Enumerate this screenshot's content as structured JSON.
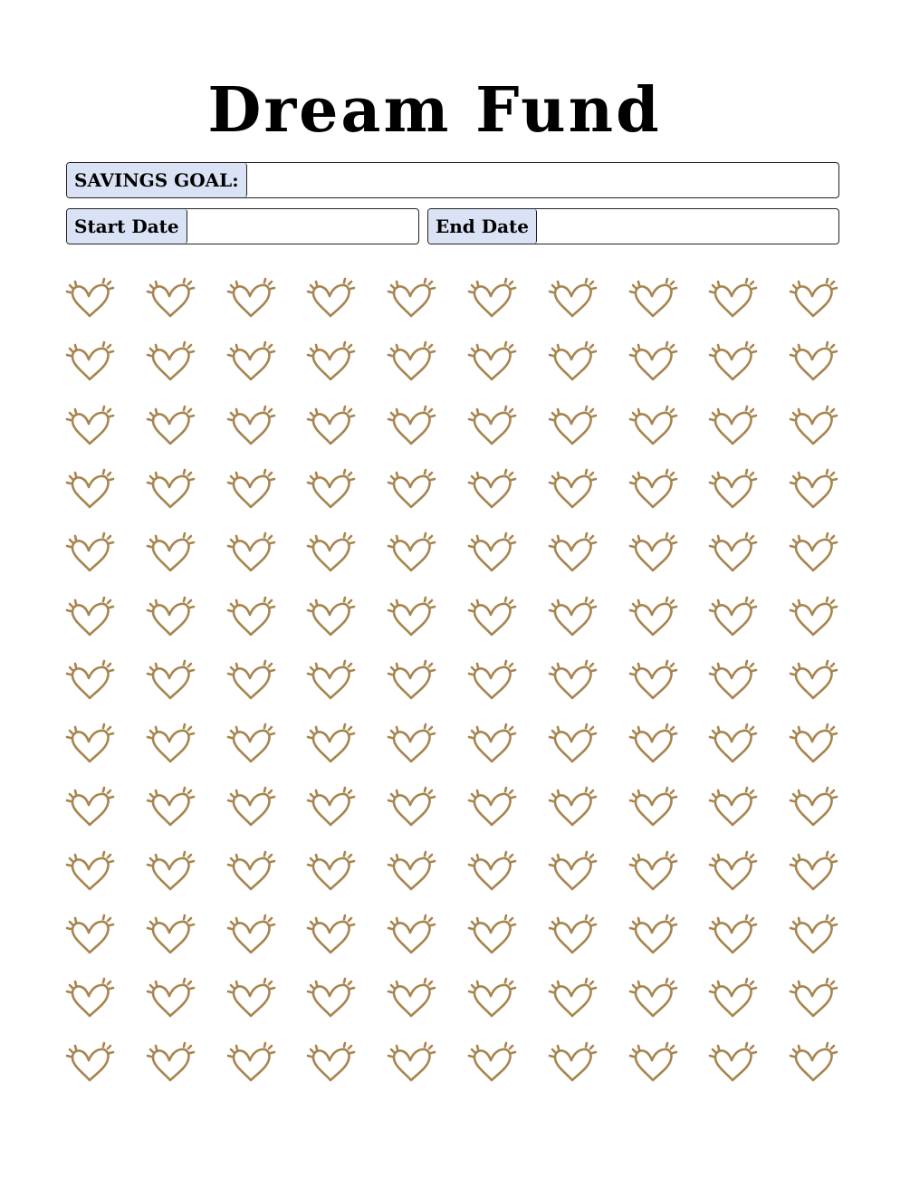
{
  "title": "Dream Fund",
  "fields": {
    "savings_goal_label": "SAVINGS GOAL:",
    "savings_goal_value": "",
    "start_date_label": "Start Date",
    "start_date_value": "",
    "end_date_label": "End Date",
    "end_date_value": ""
  },
  "tracker": {
    "rows": 13,
    "cols": 10,
    "icon": "heart-icon",
    "color": "#a8844e"
  }
}
